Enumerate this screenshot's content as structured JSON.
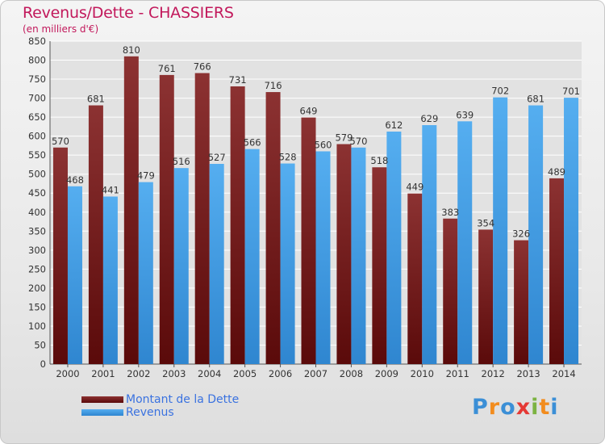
{
  "header": {
    "title": "Revenus/Dette - CHASSIERS",
    "subtitle": "(en milliers d'€)"
  },
  "legend": {
    "items": [
      {
        "label": "Montant de la Dette",
        "color": "#7a1f1f"
      },
      {
        "label": "Revenus",
        "color": "#4aa3e8"
      }
    ]
  },
  "logo": {
    "text": "Proxiti",
    "letters": [
      "P",
      "r",
      "o",
      "x",
      "i",
      "t",
      "i"
    ],
    "colors": [
      "#3b8fd6",
      "#f28c1e",
      "#3b8fd6",
      "#e53935",
      "#7cb342",
      "#f28c1e",
      "#3b8fd6"
    ]
  },
  "colors": {
    "debt": "#7a1f1f",
    "revenue": "#4aa3e8",
    "grid": "#ffffff",
    "plot_bg": "#e2e2e2"
  },
  "chart_data": {
    "type": "bar",
    "title": "Revenus/Dette - CHASSIERS",
    "subtitle": "(en milliers d'€)",
    "categories": [
      "2000",
      "2001",
      "2002",
      "2003",
      "2004",
      "2005",
      "2006",
      "2007",
      "2008",
      "2009",
      "2010",
      "2011",
      "2012",
      "2013",
      "2014"
    ],
    "series": [
      {
        "name": "Montant de la Dette",
        "values": [
          570,
          681,
          810,
          761,
          766,
          731,
          716,
          649,
          579,
          518,
          449,
          383,
          354,
          326,
          489
        ]
      },
      {
        "name": "Revenus",
        "values": [
          468,
          441,
          479,
          516,
          527,
          566,
          528,
          560,
          570,
          612,
          629,
          639,
          702,
          681,
          701
        ]
      }
    ],
    "ylim": [
      0,
      850
    ],
    "ytick_step": 50,
    "grid": true,
    "legend_position": "bottom-left"
  }
}
